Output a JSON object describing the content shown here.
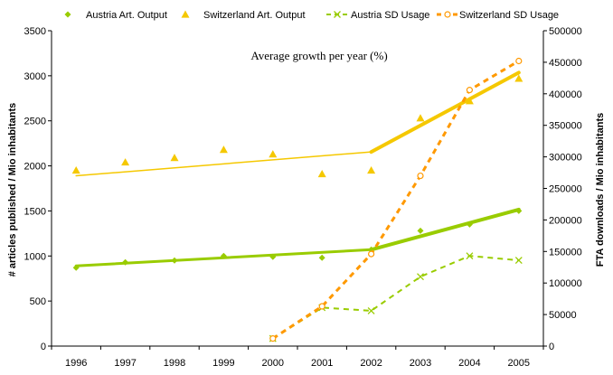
{
  "chart_data": {
    "type": "scatter",
    "annotation": "Average growth per year (%)",
    "ylabel": "# articles published / Mio inhabitants",
    "y2label": "FTA downloads / Mio inhabitants",
    "x": [
      1996,
      1997,
      1998,
      1999,
      2000,
      2001,
      2002,
      2003,
      2004,
      2005
    ],
    "xlim": [
      1995.5,
      2005.5
    ],
    "ylim": [
      0,
      3500
    ],
    "y2lim": [
      0,
      500000
    ],
    "yticks": [
      0,
      500,
      1000,
      1500,
      2000,
      2500,
      3000,
      3500
    ],
    "y2ticks": [
      0,
      50000,
      100000,
      150000,
      200000,
      250000,
      300000,
      350000,
      400000,
      450000,
      500000
    ],
    "xtick_labels": [
      "1996",
      "1997",
      "1998",
      "1999",
      "2000",
      "2001",
      "2002",
      "2003",
      "2004",
      "2005"
    ],
    "ytick_labels": [
      "0",
      "500",
      "1000",
      "1500",
      "2000",
      "2500",
      "3000",
      "3500"
    ],
    "y2tick_labels": [
      "0",
      "50000",
      "100000",
      "150000",
      "200000",
      "250000",
      "300000",
      "350000",
      "400000",
      "450000",
      "500000"
    ],
    "legend_position": "top",
    "series": [
      {
        "name": "Austria Art. Output",
        "axis": "left",
        "marker": "diamond",
        "color": "#99cc00",
        "x": [
          1996,
          1997,
          1998,
          1999,
          2000,
          2001,
          2002,
          2003,
          2004,
          2005
        ],
        "y": [
          870,
          930,
          950,
          1000,
          990,
          980,
          1070,
          1280,
          1350,
          1500
        ]
      },
      {
        "name": "Switzerland Art. Output",
        "axis": "left",
        "marker": "triangle",
        "color": "#f5c800",
        "x": [
          1996,
          1997,
          1998,
          1999,
          2000,
          2001,
          2002,
          2003,
          2004,
          2005
        ],
        "y": [
          1950,
          2040,
          2090,
          2180,
          2130,
          1910,
          1950,
          2530,
          2720,
          2970
        ]
      },
      {
        "name": "Austria SD Usage",
        "axis": "right",
        "marker": "x",
        "color": "#99cc00",
        "dashed": true,
        "x": [
          2000,
          2001,
          2002,
          2003,
          2004,
          2005
        ],
        "y": [
          12000,
          61000,
          56000,
          110000,
          143000,
          136000
        ]
      },
      {
        "name": "Switzerland SD Usage",
        "axis": "right",
        "marker": "circle",
        "color": "#ff9900",
        "dashed": true,
        "x": [
          2000,
          2001,
          2002,
          2003,
          2004,
          2005
        ],
        "y": [
          12000,
          63000,
          146000,
          270000,
          406000,
          452000
        ]
      }
    ],
    "trendlines": [
      {
        "series": "Austria Art. Output",
        "color": "#99cc00",
        "segments": [
          {
            "x": [
              1996,
              2002
            ],
            "y": [
              890,
              1070
            ],
            "width": 3
          },
          {
            "x": [
              2002,
              2005
            ],
            "y": [
              1070,
              1515
            ],
            "width": 4
          }
        ]
      },
      {
        "series": "Switzerland Art. Output",
        "color": "#f5c800",
        "segments": [
          {
            "x": [
              1996,
              2002
            ],
            "y": [
              1890,
              2155
            ],
            "width": 1.5
          },
          {
            "x": [
              2002,
              2005
            ],
            "y": [
              2155,
              3035
            ],
            "width": 4
          }
        ]
      }
    ]
  }
}
